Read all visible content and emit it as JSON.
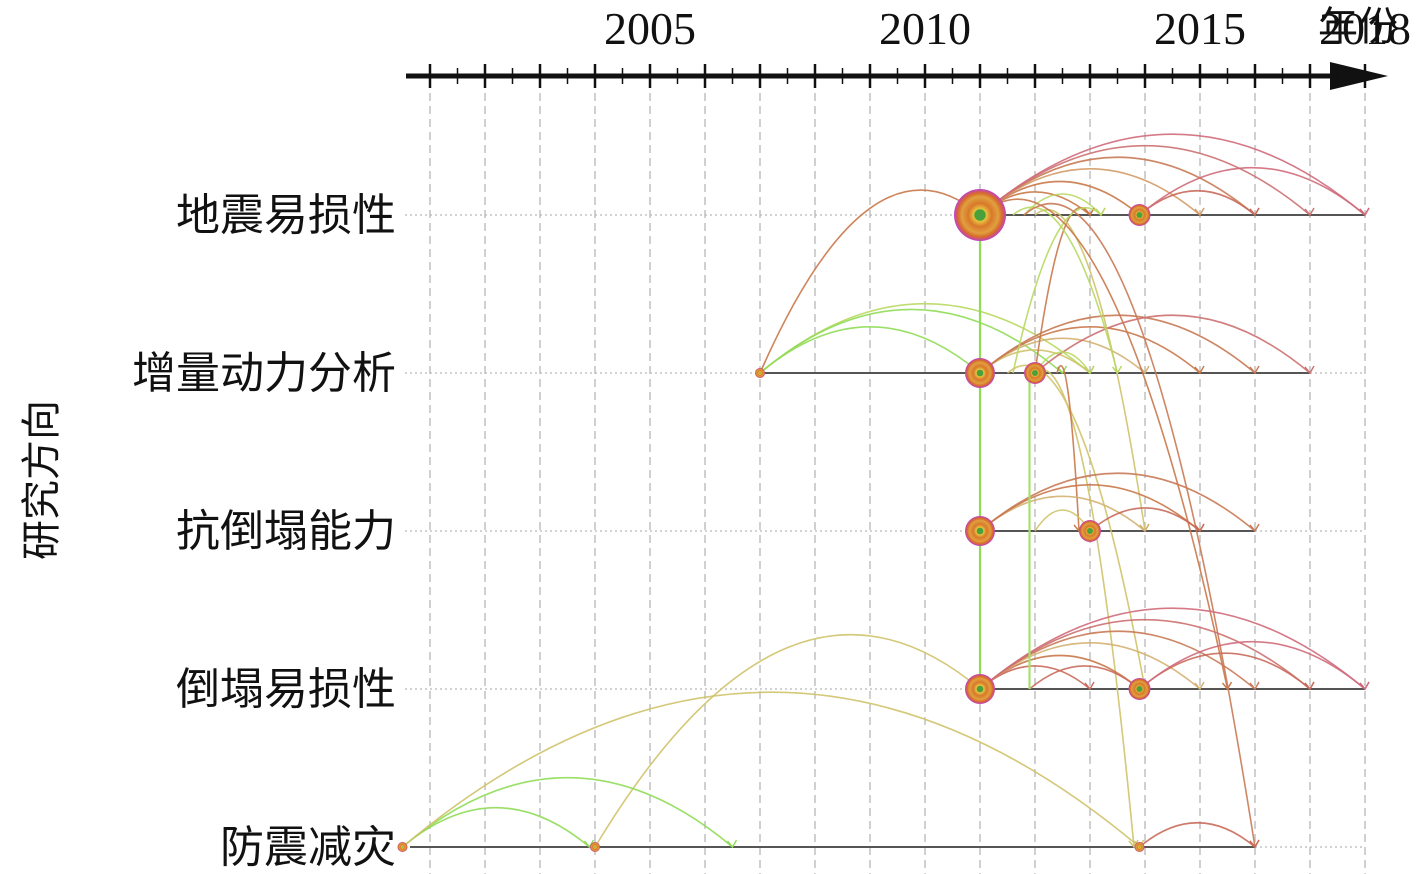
{
  "chart_data": {
    "type": "timeline",
    "x_axis": {
      "title": "年份",
      "range": [
        2000.5,
        2018.5
      ],
      "labeled_ticks": [
        "2005",
        "2010",
        "2015",
        "2018"
      ],
      "grid": true
    },
    "y_axis": {
      "title": "研究方向",
      "categories": [
        "地震易损性",
        "增量动力分析",
        "抗倒塌能力",
        "倒塌易损性",
        "防震减灾"
      ]
    },
    "clusters": [
      {
        "name": "地震易损性",
        "span": [
          2011.0,
          2018.0
        ],
        "nodes": [
          {
            "year": 2011.0,
            "size": "large"
          },
          {
            "year": 2013.9,
            "size": "small"
          }
        ]
      },
      {
        "name": "增量动力分析",
        "span": [
          2007.0,
          2017.0
        ],
        "nodes": [
          {
            "year": 2007.0,
            "size": "tiny"
          },
          {
            "year": 2011.0,
            "size": "medium"
          },
          {
            "year": 2012.0,
            "size": "small"
          }
        ]
      },
      {
        "name": "抗倒塌能力",
        "span": [
          2011.0,
          2016.0
        ],
        "nodes": [
          {
            "year": 2011.0,
            "size": "medium"
          },
          {
            "year": 2013.0,
            "size": "small"
          }
        ]
      },
      {
        "name": "倒塌易损性",
        "span": [
          2011.0,
          2018.0
        ],
        "nodes": [
          {
            "year": 2011.0,
            "size": "medium"
          },
          {
            "year": 2013.9,
            "size": "small"
          }
        ]
      },
      {
        "name": "防震减灾",
        "span": [
          2000.5,
          2016.0
        ],
        "nodes": [
          {
            "year": 2000.5,
            "size": "tiny"
          },
          {
            "year": 2004.0,
            "size": "tiny"
          },
          {
            "year": 2013.9,
            "size": "tiny"
          }
        ]
      }
    ],
    "links": [
      {
        "from": [
          0,
          2011.0
        ],
        "to": [
          0,
          2013.0
        ],
        "color": "#c9784a"
      },
      {
        "from": [
          0,
          2011.0
        ],
        "to": [
          0,
          2013.9
        ],
        "color": "#c9784a"
      },
      {
        "from": [
          0,
          2011.0
        ],
        "to": [
          0,
          2015.0
        ],
        "color": "#d49a66"
      },
      {
        "from": [
          0,
          2011.0
        ],
        "to": [
          0,
          2016.0
        ],
        "color": "#c97a55"
      },
      {
        "from": [
          0,
          2011.0
        ],
        "to": [
          0,
          2017.0
        ],
        "color": "#cc7070"
      },
      {
        "from": [
          0,
          2011.0
        ],
        "to": [
          0,
          2018.0
        ],
        "color": "#d06a7a"
      },
      {
        "from": [
          0,
          2013.9
        ],
        "to": [
          0,
          2016.0
        ],
        "color": "#c96a5a"
      },
      {
        "from": [
          0,
          2013.9
        ],
        "to": [
          0,
          2018.0
        ],
        "color": "#d06a7a"
      },
      {
        "from": [
          0,
          2011.8
        ],
        "to": [
          0,
          2013.2
        ],
        "color": "#b8d860"
      },
      {
        "from": [
          1,
          2007.0
        ],
        "to": [
          0,
          2011.0
        ],
        "color": "#c9784a"
      },
      {
        "from": [
          1,
          2007.0
        ],
        "to": [
          1,
          2011.0
        ],
        "color": "#8fdc55"
      },
      {
        "from": [
          1,
          2007.0
        ],
        "to": [
          1,
          2013.0
        ],
        "color": "#b8d860"
      },
      {
        "from": [
          1,
          2007.0
        ],
        "to": [
          1,
          2012.5
        ],
        "color": "#8fdc55"
      },
      {
        "from": [
          1,
          2011.0
        ],
        "to": [
          1,
          2013.0
        ],
        "color": "#cfc26a"
      },
      {
        "from": [
          1,
          2011.0
        ],
        "to": [
          1,
          2014.0
        ],
        "color": "#d4b070"
      },
      {
        "from": [
          1,
          2011.0
        ],
        "to": [
          1,
          2015.0
        ],
        "color": "#c9784a"
      },
      {
        "from": [
          1,
          2011.0
        ],
        "to": [
          1,
          2016.0
        ],
        "color": "#c97a55"
      },
      {
        "from": [
          1,
          2012.0
        ],
        "to": [
          1,
          2017.0
        ],
        "color": "#cc7070"
      },
      {
        "from": [
          1,
          2012.0
        ],
        "to": [
          1,
          2013.0
        ],
        "color": "#b8d860"
      },
      {
        "from": [
          1,
          2012.0
        ],
        "to": [
          0,
          2013.0
        ],
        "color": "#c9784a"
      },
      {
        "from": [
          1,
          2011.6
        ],
        "to": [
          0,
          2013.2
        ],
        "color": "#b8d860"
      },
      {
        "from": [
          0,
          2012.0
        ],
        "to": [
          2,
          2014.0
        ],
        "color": "#cfc26a"
      },
      {
        "from": [
          0,
          2011.6
        ],
        "to": [
          1,
          2013.5
        ],
        "color": "#b8d860"
      },
      {
        "from": [
          0,
          2011.0
        ],
        "to": [
          3,
          2015.5
        ],
        "color": "#c9784a"
      },
      {
        "from": [
          0,
          2011.8
        ],
        "to": [
          4,
          2016.0
        ],
        "color": "#c97a55"
      },
      {
        "from": [
          1,
          2012.0
        ],
        "to": [
          4,
          2013.8
        ],
        "color": "#cfc26a"
      },
      {
        "from": [
          1,
          2011.5
        ],
        "to": [
          3,
          2014.0
        ],
        "color": "#cfc26a"
      },
      {
        "from": [
          1,
          2012.4
        ],
        "to": [
          2,
          2012.8
        ],
        "color": "#c9784a"
      },
      {
        "from": [
          2,
          2011.0
        ],
        "to": [
          2,
          2014.0
        ],
        "color": "#d4b070"
      },
      {
        "from": [
          2,
          2011.0
        ],
        "to": [
          2,
          2015.0
        ],
        "color": "#c9784a"
      },
      {
        "from": [
          2,
          2011.0
        ],
        "to": [
          2,
          2016.0
        ],
        "color": "#c97a55"
      },
      {
        "from": [
          2,
          2013.0
        ],
        "to": [
          2,
          2015.0
        ],
        "color": "#c96a5a"
      },
      {
        "from": [
          2,
          2012.0
        ],
        "to": [
          2,
          2013.0
        ],
        "color": "#cfc26a"
      },
      {
        "from": [
          3,
          2011.0
        ],
        "to": [
          3,
          2013.0
        ],
        "color": "#c96a5a"
      },
      {
        "from": [
          3,
          2011.0
        ],
        "to": [
          3,
          2013.9
        ],
        "color": "#c9784a"
      },
      {
        "from": [
          3,
          2011.0
        ],
        "to": [
          3,
          2015.0
        ],
        "color": "#d4b070"
      },
      {
        "from": [
          3,
          2011.0
        ],
        "to": [
          3,
          2016.0
        ],
        "color": "#c97a55"
      },
      {
        "from": [
          3,
          2011.0
        ],
        "to": [
          3,
          2017.0
        ],
        "color": "#cc7070"
      },
      {
        "from": [
          3,
          2011.0
        ],
        "to": [
          3,
          2018.0
        ],
        "color": "#d06a7a"
      },
      {
        "from": [
          3,
          2011.9
        ],
        "to": [
          3,
          2013.9
        ],
        "color": "#c96a5a"
      },
      {
        "from": [
          3,
          2013.9
        ],
        "to": [
          3,
          2017.0
        ],
        "color": "#c96a5a"
      },
      {
        "from": [
          3,
          2013.9
        ],
        "to": [
          3,
          2018.0
        ],
        "color": "#d06a7a"
      },
      {
        "from": [
          4,
          2004.0
        ],
        "to": [
          3,
          2011.0
        ],
        "color": "#cfc26a"
      },
      {
        "from": [
          4,
          2000.5
        ],
        "to": [
          4,
          2003.9
        ],
        "color": "#8fdc55"
      },
      {
        "from": [
          4,
          2000.5
        ],
        "to": [
          4,
          2006.5
        ],
        "color": "#8fdc55"
      },
      {
        "from": [
          4,
          2000.5
        ],
        "to": [
          4,
          2013.9
        ],
        "color": "#cfc26a"
      },
      {
        "from": [
          4,
          2013.9
        ],
        "to": [
          4,
          2016.0
        ],
        "color": "#c96a5a"
      }
    ],
    "vertical_links": [
      {
        "year": 2011.0,
        "from_row": 0,
        "to_row": 3,
        "color": "#8fdc55"
      },
      {
        "year": 2011.9,
        "from_row": 1,
        "to_row": 3,
        "color": "#a8e070"
      }
    ]
  }
}
